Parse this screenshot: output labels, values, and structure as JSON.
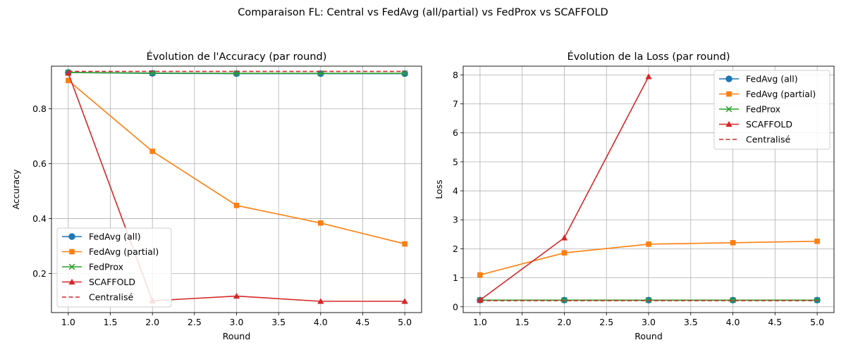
{
  "suptitle": "Comparaison FL: Central vs FedAvg (all/partial) vs FedProx vs SCAFFOLD",
  "chart_data": [
    {
      "type": "line",
      "title": "Évolution de l'Accuracy (par round)",
      "xlabel": "Round",
      "ylabel": "Accuracy",
      "xlim": [
        0.8,
        5.2
      ],
      "ylim": [
        0.058,
        0.955
      ],
      "xticks": [
        "1.0",
        "1.5",
        "2.0",
        "2.5",
        "3.0",
        "3.5",
        "4.0",
        "4.5",
        "5.0"
      ],
      "yticks": [
        "0.2",
        "0.4",
        "0.6",
        "0.8"
      ],
      "grid": true,
      "legend_position": "lower-left",
      "x": [
        1,
        2,
        3,
        4,
        5
      ],
      "series": [
        {
          "name": "FedAvg (all)",
          "color": "#1f77b4",
          "marker": "circle",
          "values": [
            0.932,
            0.929,
            0.928,
            0.928,
            0.928
          ]
        },
        {
          "name": "FedAvg (partial)",
          "color": "#ff7f0e",
          "marker": "square",
          "values": [
            0.903,
            0.645,
            0.448,
            0.384,
            0.308
          ]
        },
        {
          "name": "FedProx",
          "color": "#2ca02c",
          "marker": "x",
          "values": [
            0.932,
            0.93,
            0.929,
            0.929,
            0.929
          ]
        },
        {
          "name": "SCAFFOLD",
          "color": "#d62728",
          "marker": "triangle",
          "values": [
            0.93,
            0.101,
            0.118,
            0.099,
            0.099
          ]
        },
        {
          "name": "Centralisé",
          "color": "#d62728",
          "marker": "none",
          "dashed": true,
          "hline": 0.936
        }
      ]
    },
    {
      "type": "line",
      "title": "Évolution de la Loss (par round)",
      "xlabel": "Round",
      "ylabel": "Loss",
      "xlim": [
        0.8,
        5.2
      ],
      "ylim": [
        -0.2,
        8.3
      ],
      "xticks": [
        "1.0",
        "1.5",
        "2.0",
        "2.5",
        "3.0",
        "3.5",
        "4.0",
        "4.5",
        "5.0"
      ],
      "yticks": [
        "0",
        "1",
        "2",
        "3",
        "4",
        "5",
        "6",
        "7",
        "8"
      ],
      "grid": true,
      "legend_position": "top-right",
      "x": [
        1,
        2,
        3,
        4,
        5
      ],
      "series": [
        {
          "name": "FedAvg (all)",
          "color": "#1f77b4",
          "marker": "circle",
          "values": [
            0.23,
            0.23,
            0.23,
            0.23,
            0.23
          ]
        },
        {
          "name": "FedAvg (partial)",
          "color": "#ff7f0e",
          "marker": "square",
          "values": [
            1.1,
            1.86,
            2.16,
            2.21,
            2.26
          ]
        },
        {
          "name": "FedProx",
          "color": "#2ca02c",
          "marker": "x",
          "values": [
            0.23,
            0.23,
            0.23,
            0.23,
            0.23
          ]
        },
        {
          "name": "SCAFFOLD",
          "color": "#d62728",
          "marker": "triangle",
          "values": [
            0.23,
            2.38,
            7.94,
            null,
            null
          ]
        },
        {
          "name": "Centralisé",
          "color": "#d62728",
          "marker": "none",
          "dashed": true,
          "hline": 0.21
        }
      ]
    }
  ]
}
